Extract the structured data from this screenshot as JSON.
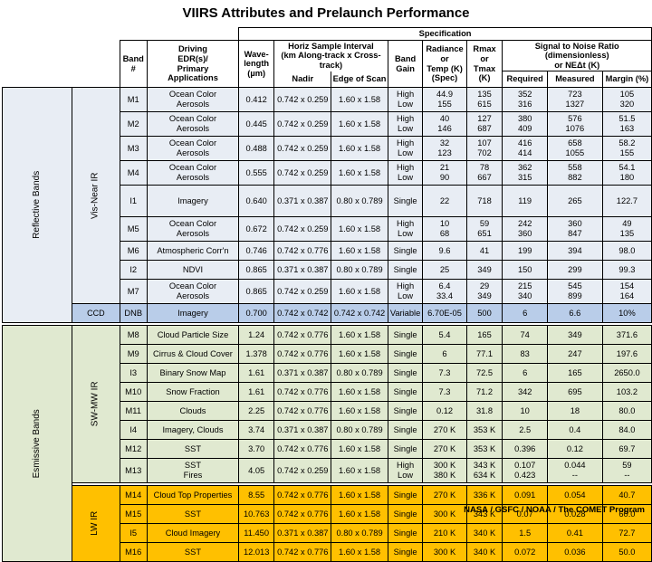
{
  "title": "VIIRS Attributes and Prelaunch Performance",
  "footer": "NASA / GSFC / NOAA / The COMET Program",
  "headers": {
    "specification": "Specification",
    "band_num": [
      "Band",
      "#"
    ],
    "driving": [
      "Driving",
      "EDR(s)/",
      "Primary",
      "Applications"
    ],
    "wavelength": [
      "Wave-",
      "length",
      "(µm)"
    ],
    "horiz": [
      "Horiz Sample Interval",
      "(km Along-track x Cross-track)"
    ],
    "nadir": "Nadir",
    "edge": "Edge of Scan",
    "band_gain": [
      "Band",
      "Gain"
    ],
    "radiance": [
      "Radiance",
      "or",
      "Temp (K)",
      "(Spec)"
    ],
    "rmax": [
      "Rmax",
      "or",
      "Tmax (K)"
    ],
    "snr": [
      "Signal to Noise Ratio",
      "(dimensionless)",
      "or NEΔt (K)"
    ],
    "required": "Required",
    "measured": "Measured",
    "margin": "Margin (%)"
  },
  "groups": {
    "reflective": "Reflective Bands",
    "emissive": "Esmissive Bands",
    "vis_near_ir": "Vis-Near IR",
    "ccd": "CCD",
    "sw_mw_ir": "SW-MW IR",
    "lw_ir": "LW IR"
  },
  "rows": [
    {
      "g": "vis",
      "band": "M1",
      "edr": [
        "Ocean Color",
        "Aerosols"
      ],
      "wl": "0.412",
      "nadir": "0.742 x 0.259",
      "edge": "1.60 x 1.58",
      "gain": [
        "High",
        "Low"
      ],
      "rad": [
        "44.9",
        "155"
      ],
      "rmax": [
        "135",
        "615"
      ],
      "req": [
        "352",
        "316"
      ],
      "meas": [
        "723",
        "1327"
      ],
      "margin": [
        "105",
        "320"
      ]
    },
    {
      "g": "vis",
      "band": "M2",
      "edr": [
        "Ocean Color",
        "Aerosols"
      ],
      "wl": "0.445",
      "nadir": "0.742 x 0.259",
      "edge": "1.60 x 1.58",
      "gain": [
        "High",
        "Low"
      ],
      "rad": [
        "40",
        "146"
      ],
      "rmax": [
        "127",
        "687"
      ],
      "req": [
        "380",
        "409"
      ],
      "meas": [
        "576",
        "1076"
      ],
      "margin": [
        "51.5",
        "163"
      ]
    },
    {
      "g": "vis",
      "band": "M3",
      "edr": [
        "Ocean Color",
        "Aerosols"
      ],
      "wl": "0.488",
      "nadir": "0.742 x 0.259",
      "edge": "1.60 x 1.58",
      "gain": [
        "High",
        "Low"
      ],
      "rad": [
        "32",
        "123"
      ],
      "rmax": [
        "107",
        "702"
      ],
      "req": [
        "416",
        "414"
      ],
      "meas": [
        "658",
        "1055"
      ],
      "margin": [
        "58.2",
        "155"
      ]
    },
    {
      "g": "vis",
      "band": "M4",
      "edr": [
        "Ocean Color",
        "Aerosols"
      ],
      "wl": "0.555",
      "nadir": "0.742 x 0.259",
      "edge": "1.60 x 1.58",
      "gain": [
        "High",
        "Low"
      ],
      "rad": [
        "21",
        "90"
      ],
      "rmax": [
        "78",
        "667"
      ],
      "req": [
        "362",
        "315"
      ],
      "meas": [
        "558",
        "882"
      ],
      "margin": [
        "54.1",
        "180"
      ]
    },
    {
      "g": "vis",
      "band": "I1",
      "edr": [
        "Imagery"
      ],
      "wl": "0.640",
      "nadir": "0.371 x 0.387",
      "edge": "0.80 x 0.789",
      "gain": [
        "Single"
      ],
      "rad": [
        "22"
      ],
      "rmax": [
        "718"
      ],
      "req": [
        "119"
      ],
      "meas": [
        "265"
      ],
      "margin": [
        "122.7"
      ]
    },
    {
      "g": "vis",
      "band": "M5",
      "edr": [
        "Ocean Color",
        "Aerosols"
      ],
      "wl": "0.672",
      "nadir": "0.742 x 0.259",
      "edge": "1.60 x 1.58",
      "gain": [
        "High",
        "Low"
      ],
      "rad": [
        "10",
        "68"
      ],
      "rmax": [
        "59",
        "651"
      ],
      "req": [
        "242",
        "360"
      ],
      "meas": [
        "360",
        "847"
      ],
      "margin": [
        "49",
        "135"
      ]
    },
    {
      "g": "vis",
      "band": "M6",
      "edr": [
        "Atmospheric Corr'n"
      ],
      "wl": "0.746",
      "nadir": "0.742 x 0.776",
      "edge": "1.60 x 1.58",
      "gain": [
        "Single"
      ],
      "rad": [
        "9.6"
      ],
      "rmax": [
        "41"
      ],
      "req": [
        "199"
      ],
      "meas": [
        "394"
      ],
      "margin": [
        "98.0"
      ]
    },
    {
      "g": "vis",
      "band": "I2",
      "edr": [
        "NDVI"
      ],
      "wl": "0.865",
      "nadir": "0.371 x 0.387",
      "edge": "0.80 x 0.789",
      "gain": [
        "Single"
      ],
      "rad": [
        "25"
      ],
      "rmax": [
        "349"
      ],
      "req": [
        "150"
      ],
      "meas": [
        "299"
      ],
      "margin": [
        "99.3"
      ]
    },
    {
      "g": "vis",
      "band": "M7",
      "edr": [
        "Ocean Color",
        "Aerosols"
      ],
      "wl": "0.865",
      "nadir": "0.742 x 0.259",
      "edge": "1.60 x 1.58",
      "gain": [
        "High",
        "Low"
      ],
      "rad": [
        "6.4",
        "33.4"
      ],
      "rmax": [
        "29",
        "349"
      ],
      "req": [
        "215",
        "340"
      ],
      "meas": [
        "545",
        "899"
      ],
      "margin": [
        "154",
        "164"
      ]
    },
    {
      "g": "ccd",
      "band": "DNB",
      "edr": [
        "Imagery"
      ],
      "wl": "0.700",
      "nadir": "0.742 x 0.742",
      "edge": "0.742 x 0.742",
      "gain": [
        "Variable"
      ],
      "rad": [
        "6.70E-05"
      ],
      "rmax": [
        "500"
      ],
      "req": [
        "6"
      ],
      "meas": [
        "6.6"
      ],
      "margin": [
        "10%"
      ]
    },
    {
      "g": "sw",
      "band": "M8",
      "edr": [
        "Cloud Particle Size"
      ],
      "wl": "1.24",
      "nadir": "0.742 x 0.776",
      "edge": "1.60 x 1.58",
      "gain": [
        "Single"
      ],
      "rad": [
        "5.4"
      ],
      "rmax": [
        "165"
      ],
      "req": [
        "74"
      ],
      "meas": [
        "349"
      ],
      "margin": [
        "371.6"
      ]
    },
    {
      "g": "sw",
      "band": "M9",
      "edr": [
        "Cirrus & Cloud Cover"
      ],
      "wl": "1.378",
      "nadir": "0.742 x 0.776",
      "edge": "1.60 x 1.58",
      "gain": [
        "Single"
      ],
      "rad": [
        "6"
      ],
      "rmax": [
        "77.1"
      ],
      "req": [
        "83"
      ],
      "meas": [
        "247"
      ],
      "margin": [
        "197.6"
      ]
    },
    {
      "g": "sw",
      "band": "I3",
      "edr": [
        "Binary Snow Map"
      ],
      "wl": "1.61",
      "nadir": "0.371 x 0.387",
      "edge": "0.80 x 0.789",
      "gain": [
        "Single"
      ],
      "rad": [
        "7.3"
      ],
      "rmax": [
        "72.5"
      ],
      "req": [
        "6"
      ],
      "meas": [
        "165"
      ],
      "margin": [
        "2650.0"
      ]
    },
    {
      "g": "sw",
      "band": "M10",
      "edr": [
        "Snow Fraction"
      ],
      "wl": "1.61",
      "nadir": "0.742 x 0.776",
      "edge": "1.60 x 1.58",
      "gain": [
        "Single"
      ],
      "rad": [
        "7.3"
      ],
      "rmax": [
        "71.2"
      ],
      "req": [
        "342"
      ],
      "meas": [
        "695"
      ],
      "margin": [
        "103.2"
      ]
    },
    {
      "g": "sw",
      "band": "M11",
      "edr": [
        "Clouds"
      ],
      "wl": "2.25",
      "nadir": "0.742 x 0.776",
      "edge": "1.60 x 1.58",
      "gain": [
        "Single"
      ],
      "rad": [
        "0.12"
      ],
      "rmax": [
        "31.8"
      ],
      "req": [
        "10"
      ],
      "meas": [
        "18"
      ],
      "margin": [
        "80.0"
      ]
    },
    {
      "g": "sw",
      "band": "I4",
      "edr": [
        "Imagery, Clouds"
      ],
      "wl": "3.74",
      "nadir": "0.371 x 0.387",
      "edge": "0.80 x 0.789",
      "gain": [
        "Single"
      ],
      "rad": [
        "270 K"
      ],
      "rmax": [
        "353 K"
      ],
      "req": [
        "2.5"
      ],
      "meas": [
        "0.4"
      ],
      "margin": [
        "84.0"
      ]
    },
    {
      "g": "sw",
      "band": "M12",
      "edr": [
        "SST"
      ],
      "wl": "3.70",
      "nadir": "0.742 x 0.776",
      "edge": "1.60 x 1.58",
      "gain": [
        "Single"
      ],
      "rad": [
        "270 K"
      ],
      "rmax": [
        "353 K"
      ],
      "req": [
        "0.396"
      ],
      "meas": [
        "0.12"
      ],
      "margin": [
        "69.7"
      ]
    },
    {
      "g": "sw",
      "band": "M13",
      "edr": [
        "SST",
        "Fires"
      ],
      "wl": "4.05",
      "nadir": "0.742 x 0.259",
      "edge": "1.60 x 1.58",
      "gain": [
        "High",
        "Low"
      ],
      "rad": [
        "300 K",
        "380 K"
      ],
      "rmax": [
        "343 K",
        "634 K"
      ],
      "req": [
        "0.107",
        "0.423"
      ],
      "meas": [
        "0.044",
        "--"
      ],
      "margin": [
        "59",
        "--"
      ]
    },
    {
      "g": "lw",
      "band": "M14",
      "edr": [
        "Cloud Top Properties"
      ],
      "wl": "8.55",
      "nadir": "0.742 x 0.776",
      "edge": "1.60 x 1.58",
      "gain": [
        "Single"
      ],
      "rad": [
        "270 K"
      ],
      "rmax": [
        "336 K"
      ],
      "req": [
        "0.091"
      ],
      "meas": [
        "0.054"
      ],
      "margin": [
        "40.7"
      ]
    },
    {
      "g": "lw",
      "band": "M15",
      "edr": [
        "SST"
      ],
      "wl": "10.763",
      "nadir": "0.742 x 0.776",
      "edge": "1.60 x 1.58",
      "gain": [
        "Single"
      ],
      "rad": [
        "300 K"
      ],
      "rmax": [
        "343 K"
      ],
      "req": [
        "0.07"
      ],
      "meas": [
        "0.028"
      ],
      "margin": [
        "60.0"
      ]
    },
    {
      "g": "lw",
      "band": "I5",
      "edr": [
        "Cloud Imagery"
      ],
      "wl": "11.450",
      "nadir": "0.371 x 0.387",
      "edge": "0.80 x 0.789",
      "gain": [
        "Single"
      ],
      "rad": [
        "210 K"
      ],
      "rmax": [
        "340 K"
      ],
      "req": [
        "1.5"
      ],
      "meas": [
        "0.41"
      ],
      "margin": [
        "72.7"
      ]
    },
    {
      "g": "lw",
      "band": "M16",
      "edr": [
        "SST"
      ],
      "wl": "12.013",
      "nadir": "0.742 x 0.776",
      "edge": "1.60 x 1.58",
      "gain": [
        "Single"
      ],
      "rad": [
        "300 K"
      ],
      "rmax": [
        "340 K"
      ],
      "req": [
        "0.072"
      ],
      "meas": [
        "0.036"
      ],
      "margin": [
        "50.0"
      ]
    }
  ]
}
